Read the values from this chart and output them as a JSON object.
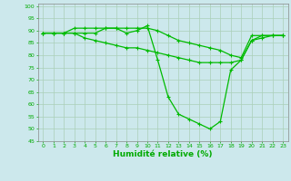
{
  "title": "",
  "xlabel": "Humidité relative (%)",
  "ylabel": "",
  "background_color": "#cce8ec",
  "grid_color": "#aacfb8",
  "line_color": "#00bb00",
  "xlim": [
    -0.5,
    23.5
  ],
  "ylim": [
    45,
    101
  ],
  "yticks": [
    45,
    50,
    55,
    60,
    65,
    70,
    75,
    80,
    85,
    90,
    95,
    100
  ],
  "xticks": [
    0,
    1,
    2,
    3,
    4,
    5,
    6,
    7,
    8,
    9,
    10,
    11,
    12,
    13,
    14,
    15,
    16,
    17,
    18,
    19,
    20,
    21,
    22,
    23
  ],
  "series1": [
    89,
    89,
    89,
    89,
    89,
    89,
    91,
    91,
    89,
    90,
    92,
    78,
    63,
    56,
    54,
    52,
    50,
    53,
    74,
    78,
    86,
    88,
    88,
    88
  ],
  "series2": [
    89,
    89,
    89,
    91,
    91,
    91,
    91,
    91,
    91,
    91,
    91,
    90,
    88,
    86,
    85,
    84,
    83,
    82,
    80,
    79,
    88,
    88,
    88,
    88
  ],
  "series3": [
    89,
    89,
    89,
    89,
    87,
    86,
    85,
    84,
    83,
    83,
    82,
    81,
    80,
    79,
    78,
    77,
    77,
    77,
    77,
    78,
    86,
    87,
    88,
    88
  ]
}
